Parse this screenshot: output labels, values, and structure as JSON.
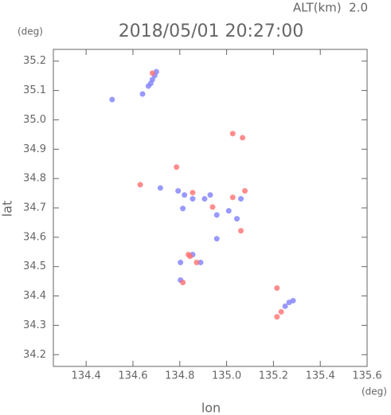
{
  "chart_data": {
    "type": "scatter",
    "title": "2018/05/01 20:27:00",
    "subtitle": "ALT(km)  2.0",
    "y_unit": "(deg)",
    "x_unit": "(deg)",
    "x_label": "lon",
    "y_label": "lat",
    "xlim": [
      134.26,
      135.6
    ],
    "ylim": [
      34.16,
      35.24
    ],
    "xticks": [
      {
        "value": 134.4,
        "label": "134.4"
      },
      {
        "value": 134.6,
        "label": "134.6"
      },
      {
        "value": 134.8,
        "label": "134.8"
      },
      {
        "value": 135.0,
        "label": "135.0"
      },
      {
        "value": 135.2,
        "label": "135.2"
      },
      {
        "value": 135.4,
        "label": "135.4"
      },
      {
        "value": 135.6,
        "label": "135.6"
      }
    ],
    "yticks": [
      {
        "value": 34.2,
        "label": "34.2"
      },
      {
        "value": 34.3,
        "label": "34.3"
      },
      {
        "value": 34.4,
        "label": "34.4"
      },
      {
        "value": 34.5,
        "label": "34.5"
      },
      {
        "value": 34.6,
        "label": "34.6"
      },
      {
        "value": 34.7,
        "label": "34.7"
      },
      {
        "value": 34.8,
        "label": "34.8"
      },
      {
        "value": 34.9,
        "label": "34.9"
      },
      {
        "value": 35.0,
        "label": "35.0"
      },
      {
        "value": 35.1,
        "label": "35.1"
      },
      {
        "value": 35.2,
        "label": "35.2"
      }
    ],
    "series": [
      {
        "color": "#8080ff",
        "x": [
          134.683,
          134.693,
          134.676,
          134.666,
          134.7,
          134.641,
          134.793,
          134.82,
          134.855,
          134.906,
          134.93,
          134.958,
          135.009,
          135.044,
          134.958,
          134.803,
          134.889,
          134.855,
          135.25,
          135.267,
          135.284,
          134.717,
          134.813,
          134.803,
          134.511,
          135.061
        ],
        "values": [
          35.137,
          35.151,
          35.124,
          35.115,
          35.164,
          35.088,
          34.758,
          34.744,
          34.731,
          34.731,
          34.744,
          34.676,
          34.69,
          34.663,
          34.595,
          34.514,
          34.514,
          34.541,
          34.365,
          34.378,
          34.384,
          34.768,
          34.698,
          34.454,
          35.069,
          34.731
        ]
      },
      {
        "color": "#ff7070",
        "x": [
          134.683,
          134.872,
          134.837,
          134.631,
          134.855,
          135.026,
          135.061,
          135.215,
          135.233,
          135.026,
          135.068,
          134.786,
          134.94,
          135.078,
          135.215,
          134.813,
          134.844
        ],
        "values": [
          35.159,
          34.514,
          34.541,
          34.779,
          34.752,
          34.736,
          34.622,
          34.329,
          34.346,
          34.953,
          34.939,
          34.839,
          34.703,
          34.758,
          34.427,
          34.446,
          34.535
        ]
      }
    ]
  }
}
